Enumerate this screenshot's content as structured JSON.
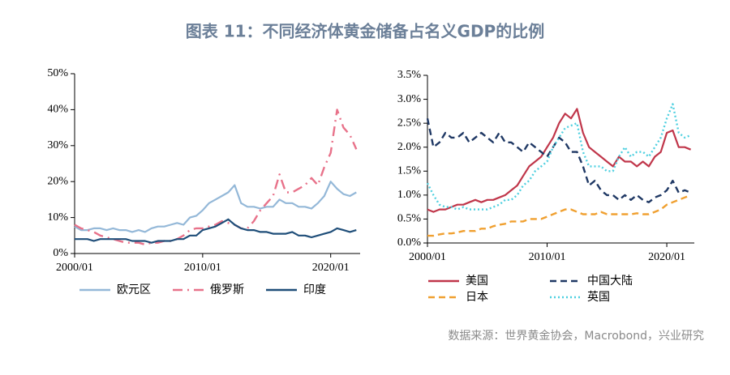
{
  "title": "图表 11：不同经济体黄金储备占名义GDP的比例",
  "source": "数据来源：世界黄金协会，Macrobond，兴业研究",
  "chart_data": [
    {
      "type": "line",
      "x": [
        2000,
        2000.5,
        2001,
        2001.5,
        2002,
        2002.5,
        2003,
        2003.5,
        2004,
        2004.5,
        2005,
        2005.5,
        2006,
        2006.5,
        2007,
        2007.5,
        2008,
        2008.5,
        2009,
        2009.5,
        2010,
        2010.5,
        2011,
        2011.5,
        2012,
        2012.5,
        2013,
        2013.5,
        2014,
        2014.5,
        2015,
        2015.5,
        2016,
        2016.5,
        2017,
        2017.5,
        2018,
        2018.5,
        2019,
        2019.5,
        2020,
        2020.5,
        2021,
        2021.5,
        2022
      ],
      "xlim": [
        2000,
        2022.3
      ],
      "xticks": [
        {
          "value": 2000,
          "label": "2000/01"
        },
        {
          "value": 2010,
          "label": "2010/01"
        },
        {
          "value": 2020,
          "label": "2020/01"
        }
      ],
      "ylim": [
        0,
        50
      ],
      "yticks": [
        {
          "value": 0,
          "label": "0%"
        },
        {
          "value": 10,
          "label": "10%"
        },
        {
          "value": 20,
          "label": "20%"
        },
        {
          "value": 30,
          "label": "30%"
        },
        {
          "value": 40,
          "label": "40%"
        },
        {
          "value": 50,
          "label": "50%"
        }
      ],
      "series": [
        {
          "name": "欧元区",
          "color": "#94b8d8",
          "linestyle": "solid",
          "values": [
            7.5,
            6.5,
            6.5,
            7,
            7,
            6.5,
            7,
            6.5,
            6.5,
            6,
            6.5,
            6,
            7,
            7.5,
            7.5,
            8,
            8.5,
            8,
            10,
            10.5,
            12,
            14,
            15,
            16,
            17,
            19,
            14,
            13,
            13,
            12.5,
            13,
            13,
            15,
            14,
            14,
            13,
            13,
            12.5,
            14,
            16,
            20,
            18,
            16.5,
            16,
            17
          ]
        },
        {
          "name": "俄罗斯",
          "color": "#e8728a",
          "linestyle": "dash-dot",
          "values": [
            8,
            7,
            6.5,
            6,
            5,
            4.5,
            4,
            3.5,
            3,
            3,
            3,
            2.5,
            3,
            3,
            3.5,
            3.5,
            4,
            5,
            6.5,
            7,
            7,
            7.5,
            8,
            9,
            8.5,
            8,
            7,
            7,
            9,
            12,
            14,
            16,
            22,
            17,
            17,
            18,
            19,
            21,
            19,
            24,
            28,
            40,
            35,
            33,
            29
          ]
        },
        {
          "name": "印度",
          "color": "#1f4e79",
          "linestyle": "solid",
          "values": [
            4,
            4,
            4,
            3.5,
            4,
            4,
            4,
            4,
            4,
            3.5,
            3.5,
            3.5,
            3,
            3.5,
            3.5,
            3.5,
            4,
            4,
            5,
            5,
            6.5,
            7,
            7.5,
            8.5,
            9.5,
            8,
            7,
            6.5,
            6.5,
            6,
            6,
            5.5,
            5.5,
            5.5,
            6,
            5,
            5,
            4.5,
            5,
            5.5,
            6,
            7,
            6.5,
            6,
            6.5
          ]
        }
      ]
    },
    {
      "type": "line",
      "x": [
        2000,
        2000.5,
        2001,
        2001.5,
        2002,
        2002.5,
        2003,
        2003.5,
        2004,
        2004.5,
        2005,
        2005.5,
        2006,
        2006.5,
        2007,
        2007.5,
        2008,
        2008.5,
        2009,
        2009.5,
        2010,
        2010.5,
        2011,
        2011.5,
        2012,
        2012.5,
        2013,
        2013.5,
        2014,
        2014.5,
        2015,
        2015.5,
        2016,
        2016.5,
        2017,
        2017.5,
        2018,
        2018.5,
        2019,
        2019.5,
        2020,
        2020.5,
        2021,
        2021.5,
        2022
      ],
      "xlim": [
        2000,
        2022.3
      ],
      "xticks": [
        {
          "value": 2000,
          "label": "2000/01"
        },
        {
          "value": 2010,
          "label": "2010/01"
        },
        {
          "value": 2020,
          "label": "2020/01"
        }
      ],
      "ylim": [
        0,
        3.5
      ],
      "yticks": [
        {
          "value": 0,
          "label": "0.0%"
        },
        {
          "value": 0.5,
          "label": "0.5%"
        },
        {
          "value": 1,
          "label": "1.0%"
        },
        {
          "value": 1.5,
          "label": "1.5%"
        },
        {
          "value": 2,
          "label": "2.0%"
        },
        {
          "value": 2.5,
          "label": "2.5%"
        },
        {
          "value": 3,
          "label": "3.0%"
        },
        {
          "value": 3.5,
          "label": "3.5%"
        }
      ],
      "series": [
        {
          "name": "美国",
          "color": "#c0364a",
          "linestyle": "solid",
          "values": [
            0.7,
            0.65,
            0.7,
            0.7,
            0.75,
            0.8,
            0.8,
            0.85,
            0.9,
            0.85,
            0.9,
            0.9,
            0.95,
            1.0,
            1.1,
            1.2,
            1.4,
            1.6,
            1.7,
            1.8,
            2.0,
            2.2,
            2.5,
            2.7,
            2.6,
            2.8,
            2.3,
            2.0,
            1.9,
            1.8,
            1.7,
            1.6,
            1.8,
            1.7,
            1.7,
            1.6,
            1.7,
            1.6,
            1.8,
            1.9,
            2.3,
            2.35,
            2.0,
            2.0,
            1.95
          ]
        },
        {
          "name": "中国大陆",
          "color": "#1f3864",
          "linestyle": "dashed",
          "values": [
            2.6,
            2.0,
            2.1,
            2.3,
            2.2,
            2.2,
            2.3,
            2.1,
            2.2,
            2.3,
            2.2,
            2.1,
            2.3,
            2.1,
            2.1,
            2.0,
            1.9,
            2.1,
            2.0,
            1.9,
            1.8,
            2.0,
            2.2,
            2.1,
            1.9,
            1.9,
            1.6,
            1.2,
            1.3,
            1.1,
            1.0,
            1.0,
            0.9,
            1.0,
            0.9,
            1.0,
            0.9,
            0.85,
            0.95,
            1.0,
            1.1,
            1.3,
            1.05,
            1.1,
            1.05
          ]
        },
        {
          "name": "日本",
          "color": "#f0a030",
          "linestyle": "dashed",
          "values": [
            0.15,
            0.15,
            0.18,
            0.2,
            0.2,
            0.22,
            0.25,
            0.25,
            0.25,
            0.3,
            0.3,
            0.35,
            0.38,
            0.4,
            0.45,
            0.45,
            0.45,
            0.5,
            0.5,
            0.5,
            0.55,
            0.6,
            0.65,
            0.7,
            0.7,
            0.65,
            0.6,
            0.6,
            0.6,
            0.65,
            0.6,
            0.6,
            0.6,
            0.6,
            0.6,
            0.62,
            0.6,
            0.6,
            0.65,
            0.7,
            0.8,
            0.85,
            0.9,
            0.95,
            1.0
          ]
        },
        {
          "name": "英国",
          "color": "#4fd0e0",
          "linestyle": "dotted",
          "values": [
            1.25,
            1.0,
            0.8,
            0.75,
            0.75,
            0.7,
            0.75,
            0.7,
            0.7,
            0.7,
            0.7,
            0.75,
            0.8,
            0.9,
            0.9,
            1.0,
            1.2,
            1.3,
            1.5,
            1.6,
            1.7,
            2.0,
            2.2,
            2.4,
            2.45,
            2.5,
            1.9,
            1.6,
            1.6,
            1.6,
            1.5,
            1.5,
            1.8,
            2.0,
            1.8,
            1.9,
            1.9,
            1.8,
            2.0,
            2.2,
            2.6,
            2.9,
            2.3,
            2.2,
            2.25
          ]
        }
      ]
    }
  ]
}
